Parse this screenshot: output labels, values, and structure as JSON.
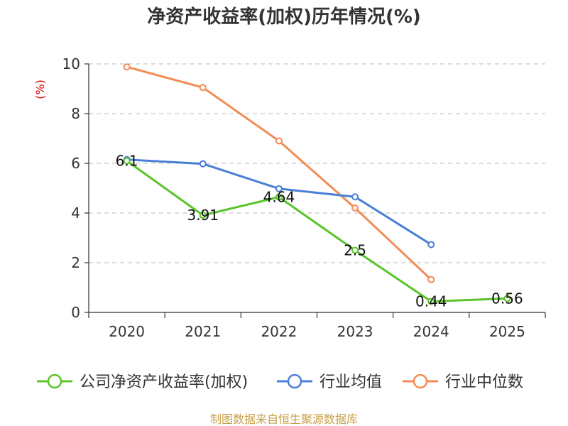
{
  "chart_data": {
    "type": "line",
    "title": "净资产收益率(加权)历年情况(%)",
    "ylabel": "(%)",
    "xlabel": "",
    "categories": [
      "2020",
      "2021",
      "2022",
      "2023",
      "2024",
      "2025"
    ],
    "ylim": [
      0,
      10
    ],
    "yticks": [
      0,
      2,
      4,
      6,
      8,
      10
    ],
    "grid": true,
    "legend_position": "bottom",
    "series": [
      {
        "name": "公司净资产收益率(加权)",
        "color": "#5ac42a",
        "values": [
          6.1,
          3.91,
          4.64,
          2.5,
          0.44,
          0.56
        ],
        "labels": [
          "6.1",
          "3.91",
          "4.64",
          "2.5",
          "0.44",
          "0.56"
        ]
      },
      {
        "name": "行业均值",
        "color": "#4a7fd6",
        "values": [
          6.15,
          5.98,
          4.98,
          4.65,
          2.73,
          null
        ]
      },
      {
        "name": "行业中位数",
        "color": "#f38c54",
        "values": [
          9.88,
          9.05,
          6.9,
          4.2,
          1.32,
          null
        ]
      }
    ],
    "source": "制图数据来自恒生聚源数据库"
  }
}
